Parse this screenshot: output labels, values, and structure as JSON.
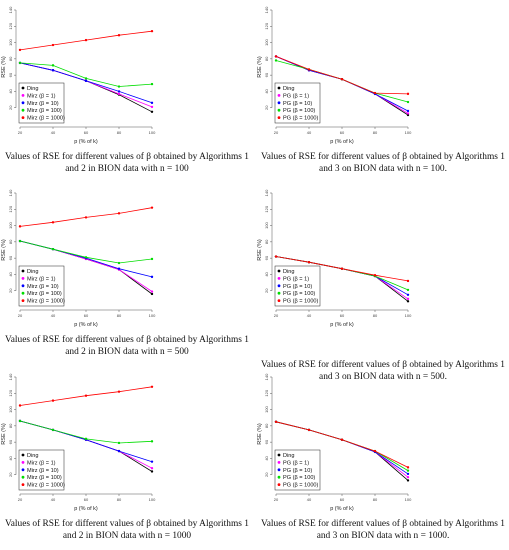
{
  "panels": [
    {
      "caption": "Values of RSE for different values of β obtained by Algorithms 1 and 2 in BION data with n = 100",
      "chart_data": {
        "type": "line",
        "xlabel": "p (% of k)",
        "ylabel": "RSE (%)",
        "x": [
          20,
          40,
          60,
          80,
          100
        ],
        "xlim": [
          20,
          100
        ],
        "ylim": [
          0,
          140
        ],
        "yticks": [
          20,
          40,
          60,
          80,
          100,
          120,
          140
        ],
        "series": [
          {
            "name": "Ding",
            "color": "#000000",
            "values": [
              75,
              66,
              53,
              36,
              15
            ]
          },
          {
            "name": "Mirz (β = 1)",
            "color": "#ff00ff",
            "values": [
              75,
              66,
              53,
              37,
              21
            ]
          },
          {
            "name": "Mirz (β = 10)",
            "color": "#0000ff",
            "values": [
              75,
              66,
              53,
              40,
              26
            ]
          },
          {
            "name": "Mirz (β = 100)",
            "color": "#00dd00",
            "values": [
              75,
              72,
              56,
              46,
              49
            ]
          },
          {
            "name": "Mirz (β = 1000)",
            "color": "#ff0000",
            "values": [
              91,
              97,
              103,
              109,
              114
            ]
          }
        ]
      }
    },
    {
      "caption": "Values of RSE for different values of β obtained by Algorithms 1 and 3 on BION data with n = 100.",
      "chart_data": {
        "type": "line",
        "xlabel": "p (% of k)",
        "ylabel": "RSE (%)",
        "x": [
          20,
          40,
          60,
          80,
          100
        ],
        "xlim": [
          20,
          100
        ],
        "ylim": [
          0,
          140
        ],
        "yticks": [
          20,
          40,
          60,
          80,
          100,
          120,
          140
        ],
        "series": [
          {
            "name": "Ding",
            "color": "#000000",
            "values": [
              83,
              66,
              55,
              37,
              11
            ]
          },
          {
            "name": "PG (β = 1)",
            "color": "#ff00ff",
            "values": [
              83,
              66,
              55,
              37,
              13
            ]
          },
          {
            "name": "PG (β = 10)",
            "color": "#0000ff",
            "values": [
              83,
              66,
              55,
              37,
              16
            ]
          },
          {
            "name": "PG (β = 100)",
            "color": "#00dd00",
            "values": [
              78,
              67,
              55,
              38,
              27
            ]
          },
          {
            "name": "PG (β = 1000)",
            "color": "#ff0000",
            "values": [
              83,
              67,
              55,
              38,
              37
            ]
          }
        ]
      }
    },
    {
      "caption": "Values of RSE for different values of β obtained by Algorithms 1 and 2 in BION data with n = 500",
      "chart_data": {
        "type": "line",
        "xlabel": "p (% of k)",
        "ylabel": "RSE (%)",
        "x": [
          20,
          40,
          60,
          80,
          100
        ],
        "xlim": [
          20,
          100
        ],
        "ylim": [
          0,
          140
        ],
        "yticks": [
          20,
          40,
          60,
          80,
          100,
          120,
          140
        ],
        "series": [
          {
            "name": "Ding",
            "color": "#000000",
            "values": [
              81,
              71,
              59,
              46,
              16
            ]
          },
          {
            "name": "Mirz (β = 1)",
            "color": "#ff00ff",
            "values": [
              81,
              71,
              59,
              46,
              19
            ]
          },
          {
            "name": "Mirz (β = 10)",
            "color": "#0000ff",
            "values": [
              81,
              71,
              60,
              47,
              37
            ]
          },
          {
            "name": "Mirz (β = 100)",
            "color": "#00dd00",
            "values": [
              81,
              71,
              61,
              54,
              59
            ]
          },
          {
            "name": "Mirz (β = 1000)",
            "color": "#ff0000",
            "values": [
              99,
              104,
              110,
              115,
              122
            ]
          }
        ]
      }
    },
    {
      "caption": "Values of RSE for different values of β obtained by Algorithms 1 and 3 on BION data with n = 500.",
      "chart_data": {
        "type": "line",
        "xlabel": "p (% of k)",
        "ylabel": "RSE (%)",
        "x": [
          20,
          40,
          60,
          80,
          100
        ],
        "xlim": [
          20,
          100
        ],
        "ylim": [
          0,
          140
        ],
        "yticks": [
          20,
          40,
          60,
          80,
          100,
          120,
          140
        ],
        "series": [
          {
            "name": "Ding",
            "color": "#000000",
            "values": [
              62,
              55,
              47,
              38,
              7
            ]
          },
          {
            "name": "PG (β = 1)",
            "color": "#ff00ff",
            "values": [
              62,
              55,
              47,
              38,
              10
            ]
          },
          {
            "name": "PG (β = 10)",
            "color": "#0000ff",
            "values": [
              62,
              55,
              47,
              38,
              15
            ]
          },
          {
            "name": "PG (β = 100)",
            "color": "#00dd00",
            "values": [
              62,
              55,
              47,
              38,
              21
            ]
          },
          {
            "name": "PG (β = 1000)",
            "color": "#ff0000",
            "values": [
              62,
              55,
              47,
              39,
              32
            ]
          }
        ]
      }
    },
    {
      "caption": "Values of RSE for different values of β obtained by Algorithms 1 and 2 in BION data with n = 1000",
      "chart_data": {
        "type": "line",
        "xlabel": "p (% of k)",
        "ylabel": "RSE (%)",
        "x": [
          20,
          40,
          60,
          80,
          100
        ],
        "xlim": [
          20,
          100
        ],
        "ylim": [
          0,
          140
        ],
        "yticks": [
          20,
          40,
          60,
          80,
          100,
          120,
          140
        ],
        "series": [
          {
            "name": "Ding",
            "color": "#000000",
            "values": [
              86,
              75,
              63,
              49,
              24
            ]
          },
          {
            "name": "Mirz (β = 1)",
            "color": "#ff00ff",
            "values": [
              86,
              75,
              63,
              49,
              28
            ]
          },
          {
            "name": "Mirz (β = 10)",
            "color": "#0000ff",
            "values": [
              86,
              75,
              63,
              49,
              36
            ]
          },
          {
            "name": "Mirz (β = 100)",
            "color": "#00dd00",
            "values": [
              86,
              75,
              64,
              59,
              61
            ]
          },
          {
            "name": "Mirz (β = 1000)",
            "color": "#ff0000",
            "values": [
              105,
              111,
              117,
              122,
              128
            ]
          }
        ]
      }
    },
    {
      "caption": "Values of RSE for different values of β obtained by Algorithms 1 and 3 on BION data with n = 1000.",
      "chart_data": {
        "type": "line",
        "xlabel": "p (% of k)",
        "ylabel": "RSE (%)",
        "x": [
          20,
          40,
          60,
          80,
          100
        ],
        "xlim": [
          20,
          100
        ],
        "ylim": [
          0,
          140
        ],
        "yticks": [
          20,
          40,
          60,
          80,
          100,
          120,
          140
        ],
        "series": [
          {
            "name": "Ding",
            "color": "#000000",
            "values": [
              85,
              75,
              63,
              48,
              13
            ]
          },
          {
            "name": "PG (β = 1)",
            "color": "#ff00ff",
            "values": [
              85,
              75,
              63,
              48,
              17
            ]
          },
          {
            "name": "PG (β = 10)",
            "color": "#0000ff",
            "values": [
              85,
              75,
              63,
              48,
              21
            ]
          },
          {
            "name": "PG (β = 100)",
            "color": "#00dd00",
            "values": [
              85,
              75,
              63,
              49,
              25
            ]
          },
          {
            "name": "PG (β = 1000)",
            "color": "#ff0000",
            "values": [
              85,
              75,
              63,
              49,
              29
            ]
          }
        ]
      }
    }
  ]
}
